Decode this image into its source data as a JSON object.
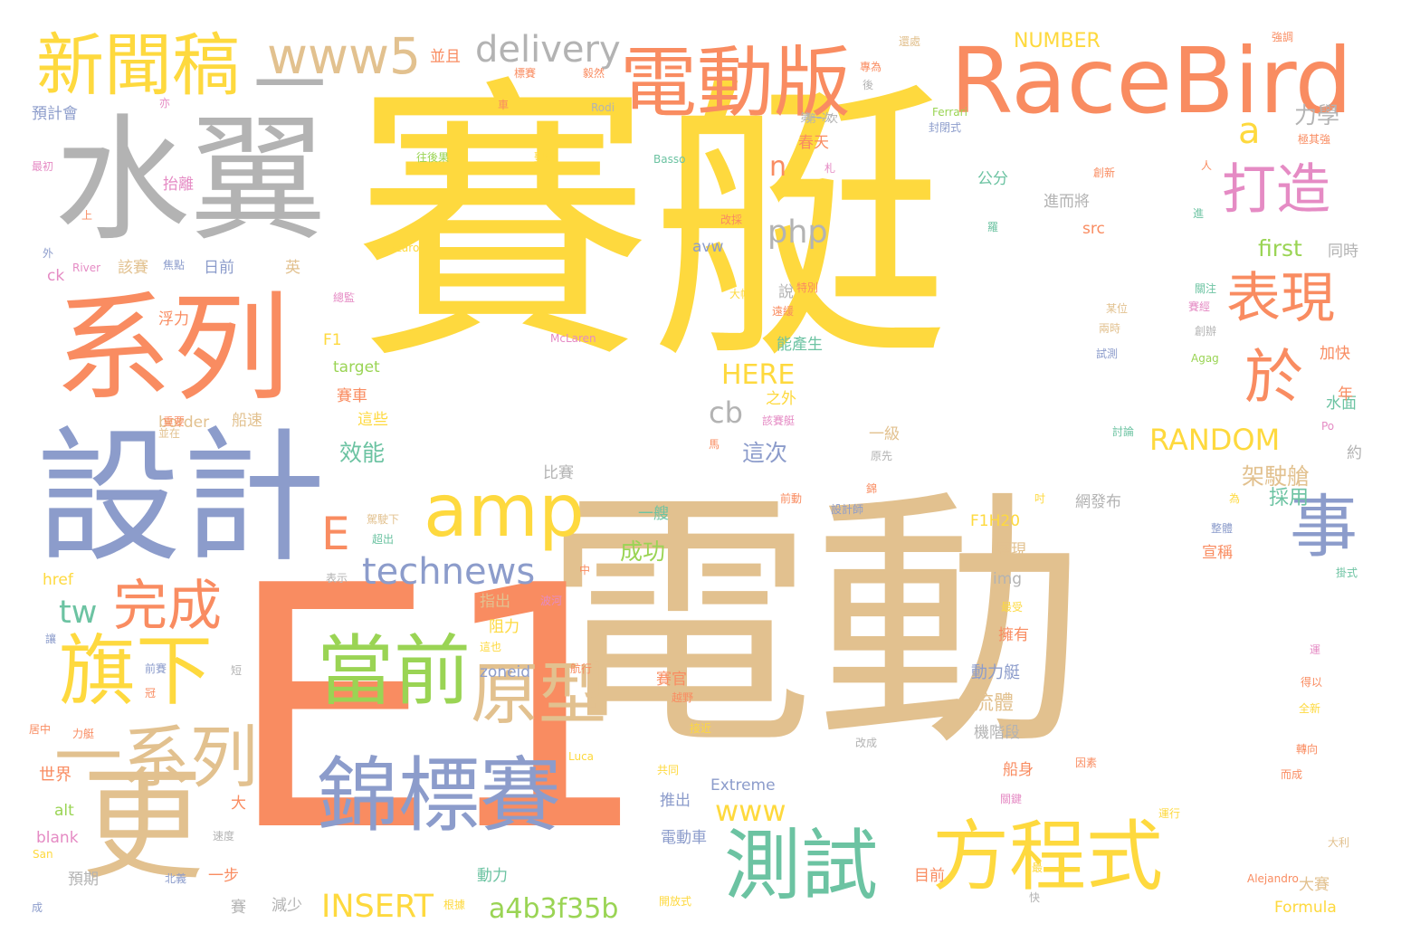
{
  "colors": {
    "yellow": "#FED93E",
    "tan": "#E2C18F",
    "orange": "#F98C61",
    "blue": "#8C9CCB",
    "gray": "#B3B3B3",
    "green": "#9AD454",
    "teal": "#6CC3A2",
    "pink": "#E58BC4"
  },
  "words": [
    "賽艇",
    "電動",
    "E1",
    "設計",
    "系列",
    "水翼",
    "一",
    "RaceBird",
    "電動版",
    "新聞稿",
    "錦標賽",
    "方程式",
    "測試",
    "當前",
    "amp",
    "旗下",
    "更",
    "一系列",
    "原型",
    "打造",
    "表現",
    "於",
    "事",
    "完成",
    "www5",
    "delivery",
    "technews",
    "E",
    "php",
    "tw",
    "a4b3f35b",
    "INSERT",
    "www",
    "RANDOM",
    "cb",
    "n",
    "a",
    "HERE",
    "架駛艙",
    "力學",
    "NUMBER",
    "效能",
    "這次",
    "流體",
    "first",
    "成功",
    "動力艇",
    "世界",
    "浮力",
    "能產生",
    "網發布",
    "展現",
    "宣稱",
    "F1H20",
    "採用",
    "target",
    "img",
    "zoneid",
    "Extreme",
    "Formula",
    "McLaren",
    "Ferrari",
    "Basso",
    "Nazzaro",
    "River",
    "Rodi",
    "Luca",
    "Alejandro",
    "href",
    "blank",
    "alt",
    "src",
    "avw",
    "border",
    "ck",
    "San",
    "Po",
    "Agag",
    "F1",
    "預計會",
    "最初",
    "抬離",
    "日前",
    "該賽",
    "英",
    "公分",
    "進而將",
    "同時",
    "加快",
    "賽車",
    "這些",
    "船速",
    "比賽",
    "一艘",
    "指出",
    "阻力",
    "推出",
    "電動車",
    "動力",
    "根據",
    "開放式",
    "目前",
    "一步",
    "預期",
    "減少",
    "賽",
    "大",
    "並且",
    "並在",
    "第一次",
    "春天",
    "特別",
    "說",
    "之外",
    "一級",
    "機階段",
    "船身",
    "擁有",
    "水面",
    "約",
    "年",
    "大賽",
    "全新",
    "轉向",
    "而成",
    "運行",
    "大利",
    "關鍵",
    "因素",
    "共同",
    "越野",
    "接近",
    "改成",
    "航行",
    "賽官",
    "這也",
    "波河",
    "表示",
    "中",
    "成",
    "北義",
    "速度",
    "前賽",
    "居中",
    "力艇",
    "冠",
    "讓",
    "重要",
    "標賽",
    "毅然",
    "還處",
    "專為",
    "強調",
    "後",
    "車",
    "亦",
    "外",
    "上",
    "焦點",
    "總監",
    "大幅",
    "遠緩",
    "原先",
    "設計師",
    "吋",
    "為",
    "錦",
    "駕駛下",
    "超出",
    "馬",
    "該賽艇",
    "封閉式",
    "創新",
    "極其強",
    "人",
    "進",
    "羅",
    "關注",
    "某位",
    "兩時",
    "賽經",
    "創辦",
    "試測",
    "得以",
    "運",
    "掛式",
    "整體",
    "最受",
    "討論",
    "快",
    "最",
    "札",
    "改採",
    "第一次",
    "往後果",
    "聖納",
    "前動",
    "短"
  ]
}
